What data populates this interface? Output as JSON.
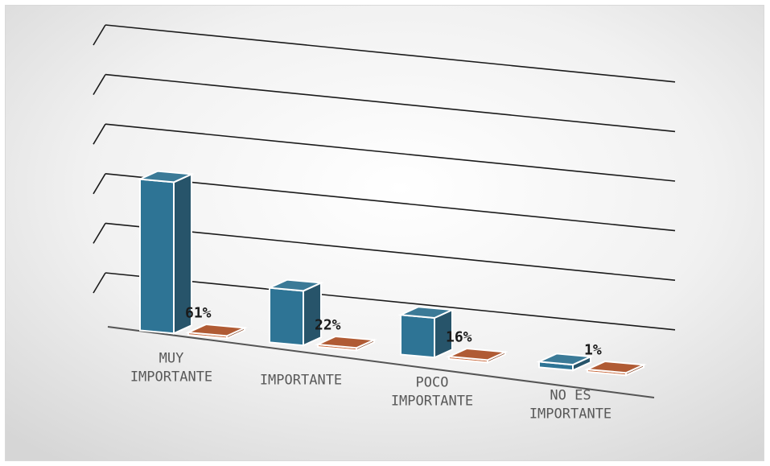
{
  "chart_data": {
    "type": "bar",
    "categories": [
      "MUY IMPORTANTE",
      "IMPORTANTE",
      "POCO IMPORTANTE",
      "NO ES IMPORTANTE"
    ],
    "series": [
      {
        "values": [
          61,
          22,
          16,
          1
        ],
        "color": "#2e7495"
      },
      {
        "values": [
          0,
          0,
          0,
          0
        ],
        "color": "#c8693c"
      }
    ],
    "data_labels": [
      "61%",
      "22%",
      "16%",
      "1%"
    ],
    "ylim": [
      0,
      100
    ],
    "grid": true,
    "legend": "none",
    "three_d": true
  }
}
